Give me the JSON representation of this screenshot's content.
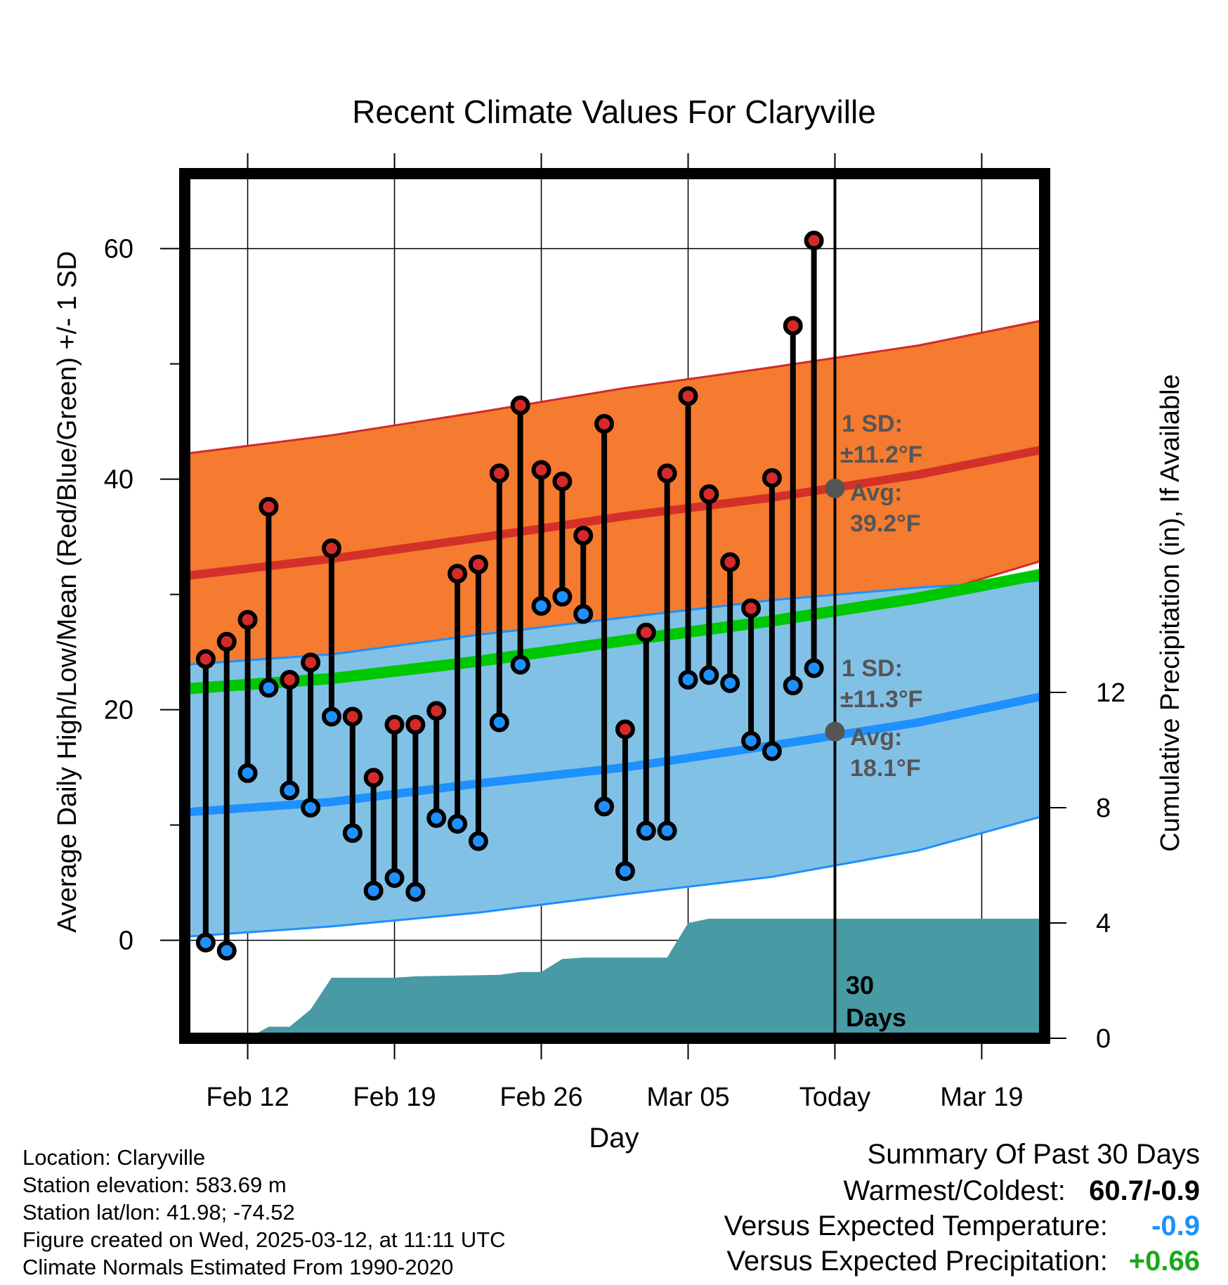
{
  "chart_data": {
    "type": "line",
    "title": "Recent Climate Values For Claryville",
    "xlabel": "Day",
    "ylabel": "Average Daily High/Low/Mean (Red/Blue/Green) +/- 1 SD",
    "y2label": "Cumulative Precipitation (in), If Available",
    "ylim": [
      -8.5,
      66.5
    ],
    "y2lim": [
      0,
      30
    ],
    "y_ticks": [
      "0",
      "20",
      "40",
      "60"
    ],
    "y2_ticks": [
      "0",
      "4",
      "8",
      "12"
    ],
    "x_range": [
      "2025-02-09",
      "2025-03-22"
    ],
    "x_ticks": [
      {
        "date": "2025-02-12",
        "label": "Feb 12"
      },
      {
        "date": "2025-02-19",
        "label": "Feb 19"
      },
      {
        "date": "2025-02-26",
        "label": "Feb 26"
      },
      {
        "date": "2025-03-05",
        "label": "Mar 05"
      },
      {
        "date": "2025-03-12",
        "label": "Today"
      },
      {
        "date": "2025-03-19",
        "label": "Mar 19"
      }
    ],
    "grid": true,
    "colors": {
      "high": "#d42a2a",
      "low": "#1e90ff",
      "mean": "#00c800",
      "high_band": "#f47b2f",
      "low_band": "#82c1e6",
      "high_avg": "#d4302a",
      "low_avg": "#1e90ff",
      "precip": "#489aa5",
      "today_marker": "#555555",
      "overlap": "#9b1c1c"
    },
    "normals": {
      "dates": [
        "2025-02-09",
        "2025-02-16",
        "2025-02-23",
        "2025-03-02",
        "2025-03-09",
        "2025-03-16",
        "2025-03-22"
      ],
      "high_avg": [
        31.6,
        33.1,
        34.9,
        36.8,
        38.4,
        40.4,
        42.6
      ],
      "high_upper": [
        42.2,
        43.8,
        45.8,
        47.9,
        49.7,
        51.6,
        53.8
      ],
      "high_lower": [
        21.4,
        22.6,
        24.4,
        26.0,
        27.7,
        29.7,
        33.0
      ],
      "low_avg": [
        11.1,
        12.0,
        13.6,
        15.0,
        16.9,
        18.9,
        21.2
      ],
      "low_upper": [
        23.9,
        24.8,
        26.5,
        28.0,
        29.5,
        30.6,
        31.2
      ],
      "low_lower": [
        0.3,
        1.2,
        2.4,
        4.0,
        5.5,
        7.8,
        10.8
      ],
      "mean_avg": [
        21.8,
        22.7,
        24.2,
        26.0,
        27.7,
        29.7,
        31.8
      ]
    },
    "daily": {
      "dates": [
        "2025-02-10",
        "2025-02-11",
        "2025-02-12",
        "2025-02-13",
        "2025-02-14",
        "2025-02-15",
        "2025-02-16",
        "2025-02-17",
        "2025-02-18",
        "2025-02-19",
        "2025-02-20",
        "2025-02-21",
        "2025-02-22",
        "2025-02-23",
        "2025-02-24",
        "2025-02-25",
        "2025-02-26",
        "2025-02-27",
        "2025-02-28",
        "2025-03-01",
        "2025-03-02",
        "2025-03-03",
        "2025-03-04",
        "2025-03-05",
        "2025-03-06",
        "2025-03-07",
        "2025-03-08",
        "2025-03-09",
        "2025-03-10",
        "2025-03-11"
      ],
      "highs": [
        24.4,
        25.9,
        27.8,
        37.6,
        22.6,
        24.1,
        34.0,
        19.4,
        14.1,
        18.7,
        18.7,
        19.9,
        31.8,
        32.6,
        40.5,
        46.4,
        40.8,
        39.8,
        35.1,
        44.8,
        18.3,
        26.7,
        40.5,
        47.2,
        38.7,
        32.8,
        28.8,
        40.1,
        53.3,
        60.7
      ],
      "lows": [
        -0.2,
        -0.9,
        14.5,
        21.9,
        13.0,
        11.5,
        19.4,
        9.3,
        4.3,
        5.4,
        4.2,
        10.6,
        10.1,
        8.6,
        18.9,
        23.9,
        29.0,
        29.8,
        28.3,
        11.6,
        6.0,
        9.5,
        9.5,
        22.6,
        23.0,
        22.3,
        17.3,
        16.4,
        22.1,
        23.6
      ]
    },
    "precip": {
      "dates": [
        "2025-02-09",
        "2025-02-12",
        "2025-02-13",
        "2025-02-14",
        "2025-02-15",
        "2025-02-16",
        "2025-02-19",
        "2025-02-20",
        "2025-02-24",
        "2025-02-25",
        "2025-02-26",
        "2025-02-27",
        "2025-02-28",
        "2025-03-04",
        "2025-03-05",
        "2025-03-06",
        "2025-03-22"
      ],
      "values": [
        0.0,
        0.0,
        0.4,
        0.4,
        1.0,
        2.1,
        2.1,
        2.15,
        2.2,
        2.3,
        2.3,
        2.75,
        2.8,
        2.8,
        4.0,
        4.15,
        4.15
      ]
    },
    "annotations": {
      "high_sd_label": "1 SD:",
      "high_sd_value": "±11.2°F",
      "high_avg_label": "Avg:",
      "high_avg_value": "39.2°F",
      "today_high_avg": 39.2,
      "low_sd_label": "1 SD:",
      "low_sd_value": "±11.3°F",
      "low_avg_label": "Avg:",
      "low_avg_value": "18.1°F",
      "today_low_avg": 18.1,
      "days_label_1": "30",
      "days_label_2": "Days"
    }
  },
  "info": {
    "location": "Location: Claryville",
    "elevation": "Station elevation: 583.69 m",
    "latlon": "Station lat/lon: 41.98; -74.52",
    "created": "Figure created on Wed, 2025-03-12, at 11:11 UTC",
    "normals": "Climate Normals Estimated From 1990-2020"
  },
  "summary": {
    "title": "Summary Of Past 30 Days",
    "warm_cold_label": "Warmest/Coldest:",
    "warm_cold_value": "60.7/-0.9",
    "temp_label": "Versus Expected Temperature:",
    "temp_value": "-0.9",
    "temp_color": "#1e90ff",
    "precip_label": "Versus Expected Precipitation:",
    "precip_value": "+0.66",
    "precip_color": "#1aa81a"
  }
}
